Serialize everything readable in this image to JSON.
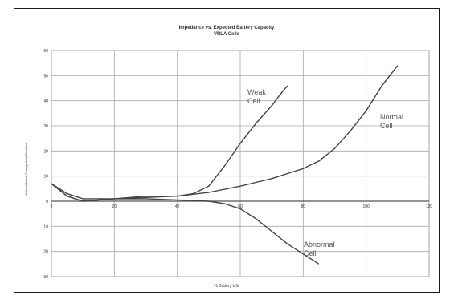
{
  "chart_data": {
    "type": "line",
    "title": "Impedance vs. Expected Battery Capacity",
    "subtitle": "VRLA Cells",
    "xlabel": "% Battery Life",
    "ylabel": "% Impedance Change from Baseline",
    "xlim": [
      0,
      120
    ],
    "ylim": [
      -30,
      60
    ],
    "x_ticks": [
      "0",
      "20",
      "40",
      "60",
      "80",
      "100",
      "120"
    ],
    "y_ticks": [
      "60",
      "50",
      "40",
      "30",
      "20",
      "10",
      "0",
      "-10",
      "-20",
      "-30"
    ],
    "grid": true,
    "series": [
      {
        "name": "Normal Cell",
        "label_lines": [
          "Normal",
          "Cell"
        ],
        "color": "#444444",
        "points": [
          [
            0,
            7
          ],
          [
            5,
            2
          ],
          [
            10,
            0
          ],
          [
            20,
            1
          ],
          [
            30,
            1.5
          ],
          [
            40,
            2
          ],
          [
            50,
            3.5
          ],
          [
            60,
            6
          ],
          [
            65,
            7.5
          ],
          [
            70,
            9
          ],
          [
            75,
            11
          ],
          [
            80,
            13
          ],
          [
            85,
            16
          ],
          [
            90,
            21
          ],
          [
            95,
            28
          ],
          [
            100,
            36
          ],
          [
            105,
            46
          ],
          [
            110,
            54
          ]
        ]
      },
      {
        "name": "Weak Cell",
        "label_lines": [
          "Weak",
          "Cell"
        ],
        "color": "#444444",
        "points": [
          [
            0,
            7
          ],
          [
            5,
            2
          ],
          [
            10,
            0
          ],
          [
            20,
            1
          ],
          [
            30,
            2
          ],
          [
            40,
            2
          ],
          [
            45,
            3
          ],
          [
            50,
            6
          ],
          [
            55,
            14
          ],
          [
            60,
            23
          ],
          [
            65,
            31
          ],
          [
            70,
            38
          ],
          [
            73,
            43
          ],
          [
            75,
            46
          ]
        ]
      },
      {
        "name": "Abnormal Cell",
        "label_lines": [
          "Abnormal",
          "Cell"
        ],
        "color": "#444444",
        "points": [
          [
            0,
            7
          ],
          [
            5,
            3
          ],
          [
            10,
            1
          ],
          [
            20,
            1
          ],
          [
            30,
            1
          ],
          [
            40,
            0.5
          ],
          [
            50,
            0
          ],
          [
            55,
            -1
          ],
          [
            60,
            -3
          ],
          [
            65,
            -7
          ],
          [
            70,
            -12
          ],
          [
            75,
            -17
          ],
          [
            80,
            -21
          ],
          [
            85,
            -25
          ]
        ]
      }
    ]
  }
}
